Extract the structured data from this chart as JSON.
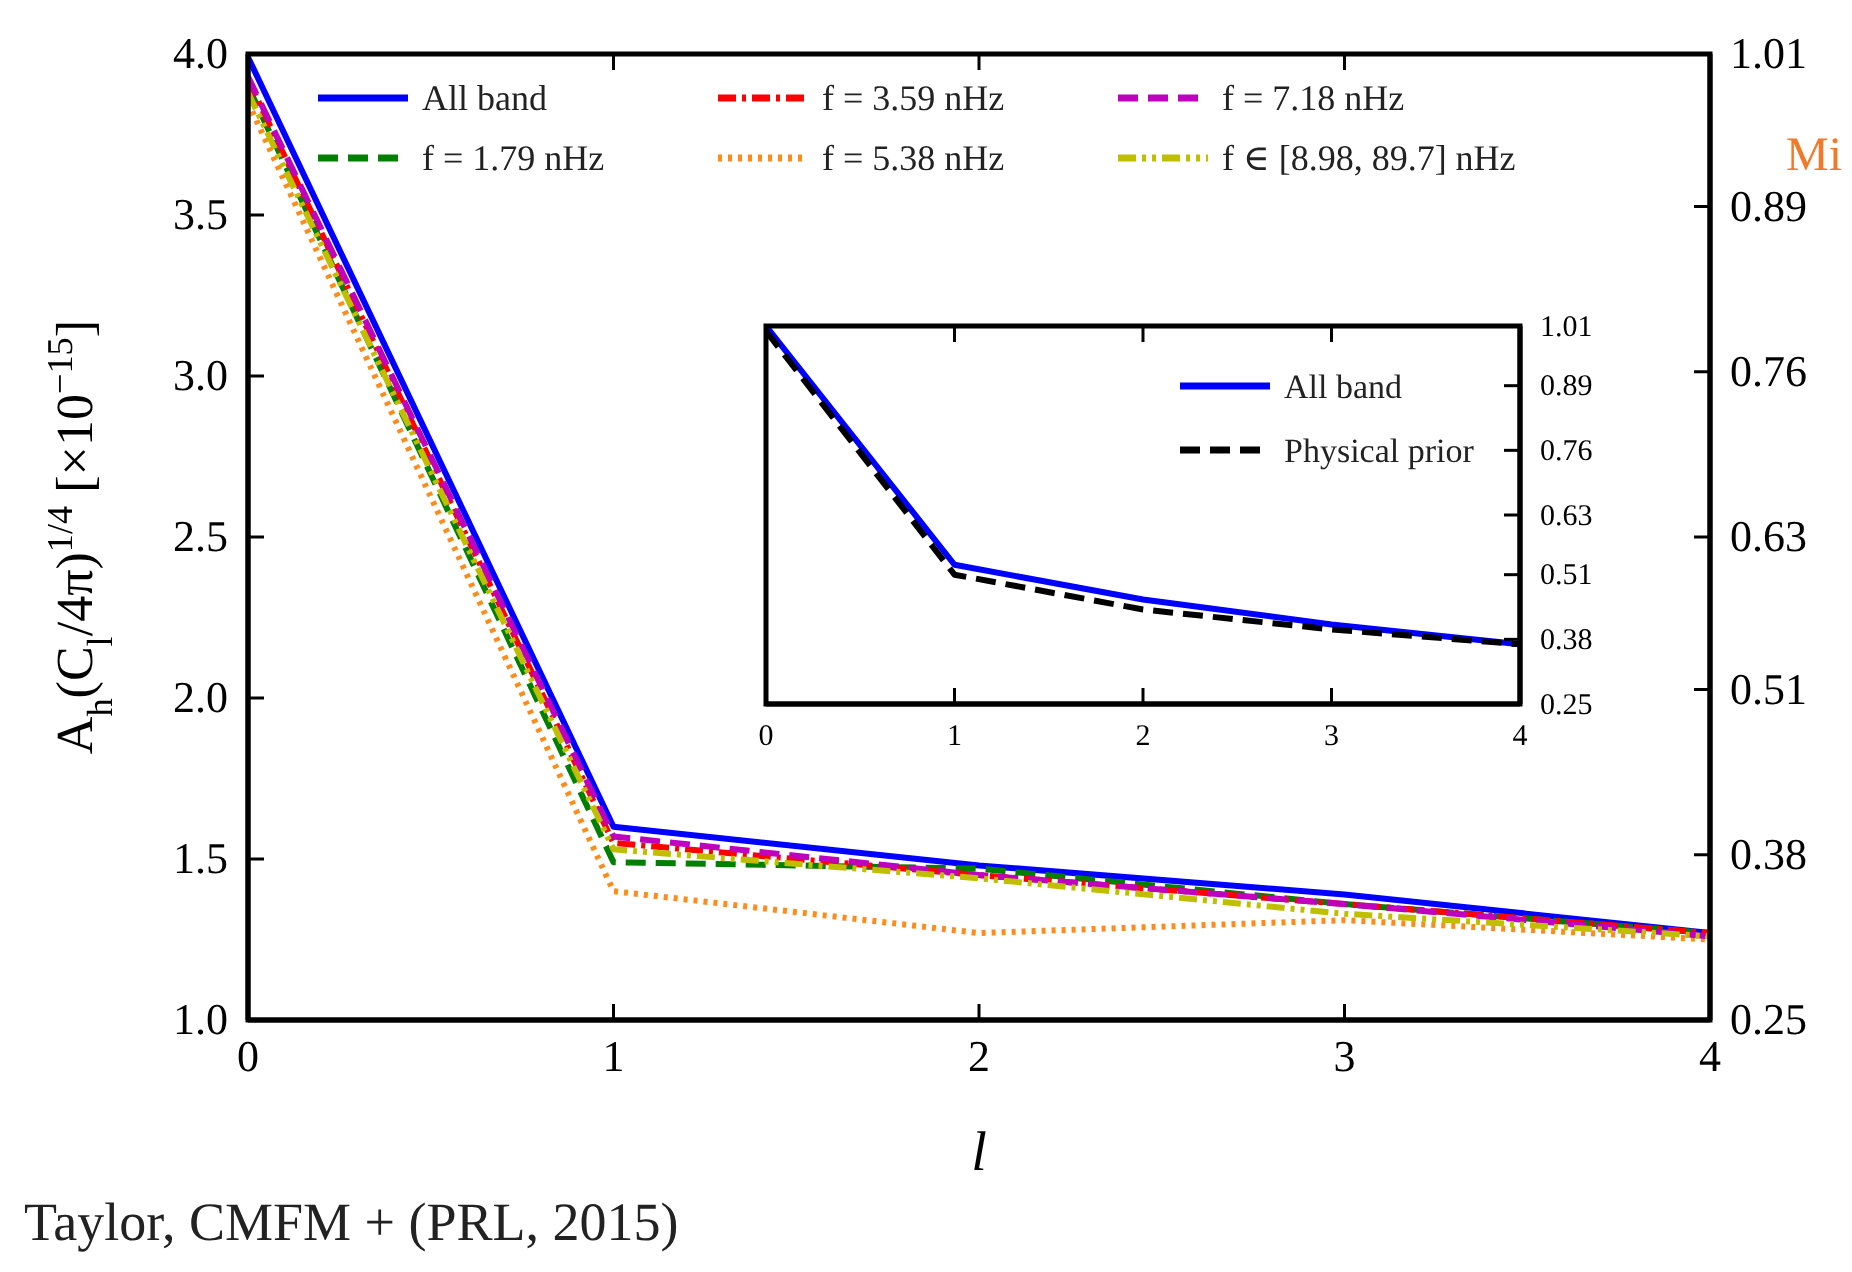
{
  "chart_data": [
    {
      "type": "line",
      "xlabel": "l",
      "ylabel": "A$_{h}$(C$_{l}$/4π)$^{1/4}$ [×10$^{−15}$]",
      "x": [
        0,
        1,
        2,
        3,
        4
      ],
      "xlim": [
        0,
        4
      ],
      "xticks": [
        0,
        1,
        2,
        3,
        4
      ],
      "ylim": [
        1,
        4
      ],
      "yticks": [
        {
          "value": 1,
          "label": "1.0"
        },
        {
          "value": 1.5,
          "label": "1.5"
        },
        {
          "value": 2,
          "label": "2.0"
        },
        {
          "value": 2.5,
          "label": "2.5"
        },
        {
          "value": 3,
          "label": "3.0"
        },
        {
          "value": 3.5,
          "label": "3.5"
        },
        {
          "value": 4,
          "label": "4.0"
        }
      ],
      "y2lim": [
        0.25,
        1.01
      ],
      "y2ticks": [
        0.25,
        0.38,
        0.51,
        0.63,
        0.76,
        0.89,
        1.01
      ],
      "legend": "top",
      "grid": false,
      "marker": "none",
      "series": [
        {
          "name": "All band",
          "color": "#0000ff",
          "line_style": "solid",
          "values": [
            3.99,
            1.6,
            1.48,
            1.39,
            1.27
          ]
        },
        {
          "name": "f = 1.79 nHz",
          "color": "#007f00",
          "line_style": "dashed",
          "values": [
            3.9,
            1.49,
            1.47,
            1.36,
            1.27
          ]
        },
        {
          "name": "f = 3.59 nHz",
          "color": "#ff0000",
          "line_style": "dashdot",
          "values": [
            3.92,
            1.55,
            1.45,
            1.36,
            1.27
          ]
        },
        {
          "name": "f = 5.38 nHz",
          "color": "#ff8c1a",
          "line_style": "dotted",
          "values": [
            3.85,
            1.4,
            1.27,
            1.31,
            1.25
          ]
        },
        {
          "name": "f = 7.18 nHz",
          "color": "#bf00bf",
          "line_style": "dashed",
          "values": [
            3.93,
            1.57,
            1.45,
            1.36,
            1.26
          ]
        },
        {
          "name": "f ∈ [8.98, 89.7] nHz",
          "color": "#bfbf00",
          "line_style": "dashdotdot",
          "values": [
            3.88,
            1.53,
            1.44,
            1.33,
            1.26
          ]
        }
      ],
      "annotations": [
        "Taylor, CMFM + (PRL, 2015)",
        "Mi"
      ]
    },
    {
      "type": "line",
      "x": [
        0,
        1,
        2,
        3,
        4
      ],
      "xlim": [
        0,
        4
      ],
      "xticks": [
        0,
        1,
        2,
        3,
        4
      ],
      "ylim": [
        0.25,
        1.01
      ],
      "yticks": [
        0.25,
        0.38,
        0.51,
        0.63,
        0.76,
        0.89,
        1.01
      ],
      "legend": "top right",
      "grid": false,
      "marker": "none",
      "series": [
        {
          "name": "All band",
          "color": "#0000ff",
          "line_style": "solid",
          "values": [
            1.01,
            0.53,
            0.46,
            0.41,
            0.37
          ]
        },
        {
          "name": "Physical prior",
          "color": "#000000",
          "line_style": "dashed",
          "values": [
            1.0,
            0.51,
            0.44,
            0.4,
            0.37
          ]
        }
      ]
    }
  ]
}
